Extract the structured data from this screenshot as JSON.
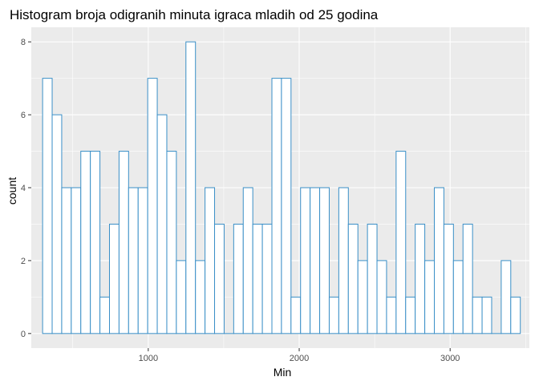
{
  "chart_data": {
    "type": "histogram",
    "title": "Histogram broja odigranih minuta igraca mladih od 25 godina",
    "xlabel": "Min",
    "ylabel": "count",
    "xlim": [
      225,
      3525
    ],
    "ylim": [
      -0.4,
      8.4
    ],
    "x_ticks": [
      1000,
      2000,
      3000
    ],
    "x_tick_labels": [
      "1000",
      "2000",
      "3000"
    ],
    "y_ticks": [
      0,
      2,
      4,
      6,
      8
    ],
    "y_tick_labels": [
      "0",
      "2",
      "4",
      "6",
      "8"
    ],
    "bin_start": 300,
    "bin_width": 63.3,
    "counts": [
      7,
      6,
      4,
      4,
      5,
      5,
      1,
      3,
      5,
      4,
      4,
      7,
      6,
      5,
      2,
      8,
      2,
      4,
      3,
      0,
      3,
      4,
      3,
      3,
      7,
      7,
      1,
      4,
      4,
      4,
      1,
      4,
      3,
      2,
      3,
      2,
      1,
      5,
      1,
      3,
      2,
      4,
      3,
      2,
      3,
      1,
      1,
      0,
      2,
      1
    ],
    "grid": true,
    "colors": {
      "panel_background": "#EBEBEB",
      "grid_major": "#FFFFFF",
      "bar_outline": "#3A8FC7",
      "bar_fill": "#FFFFFF"
    }
  }
}
